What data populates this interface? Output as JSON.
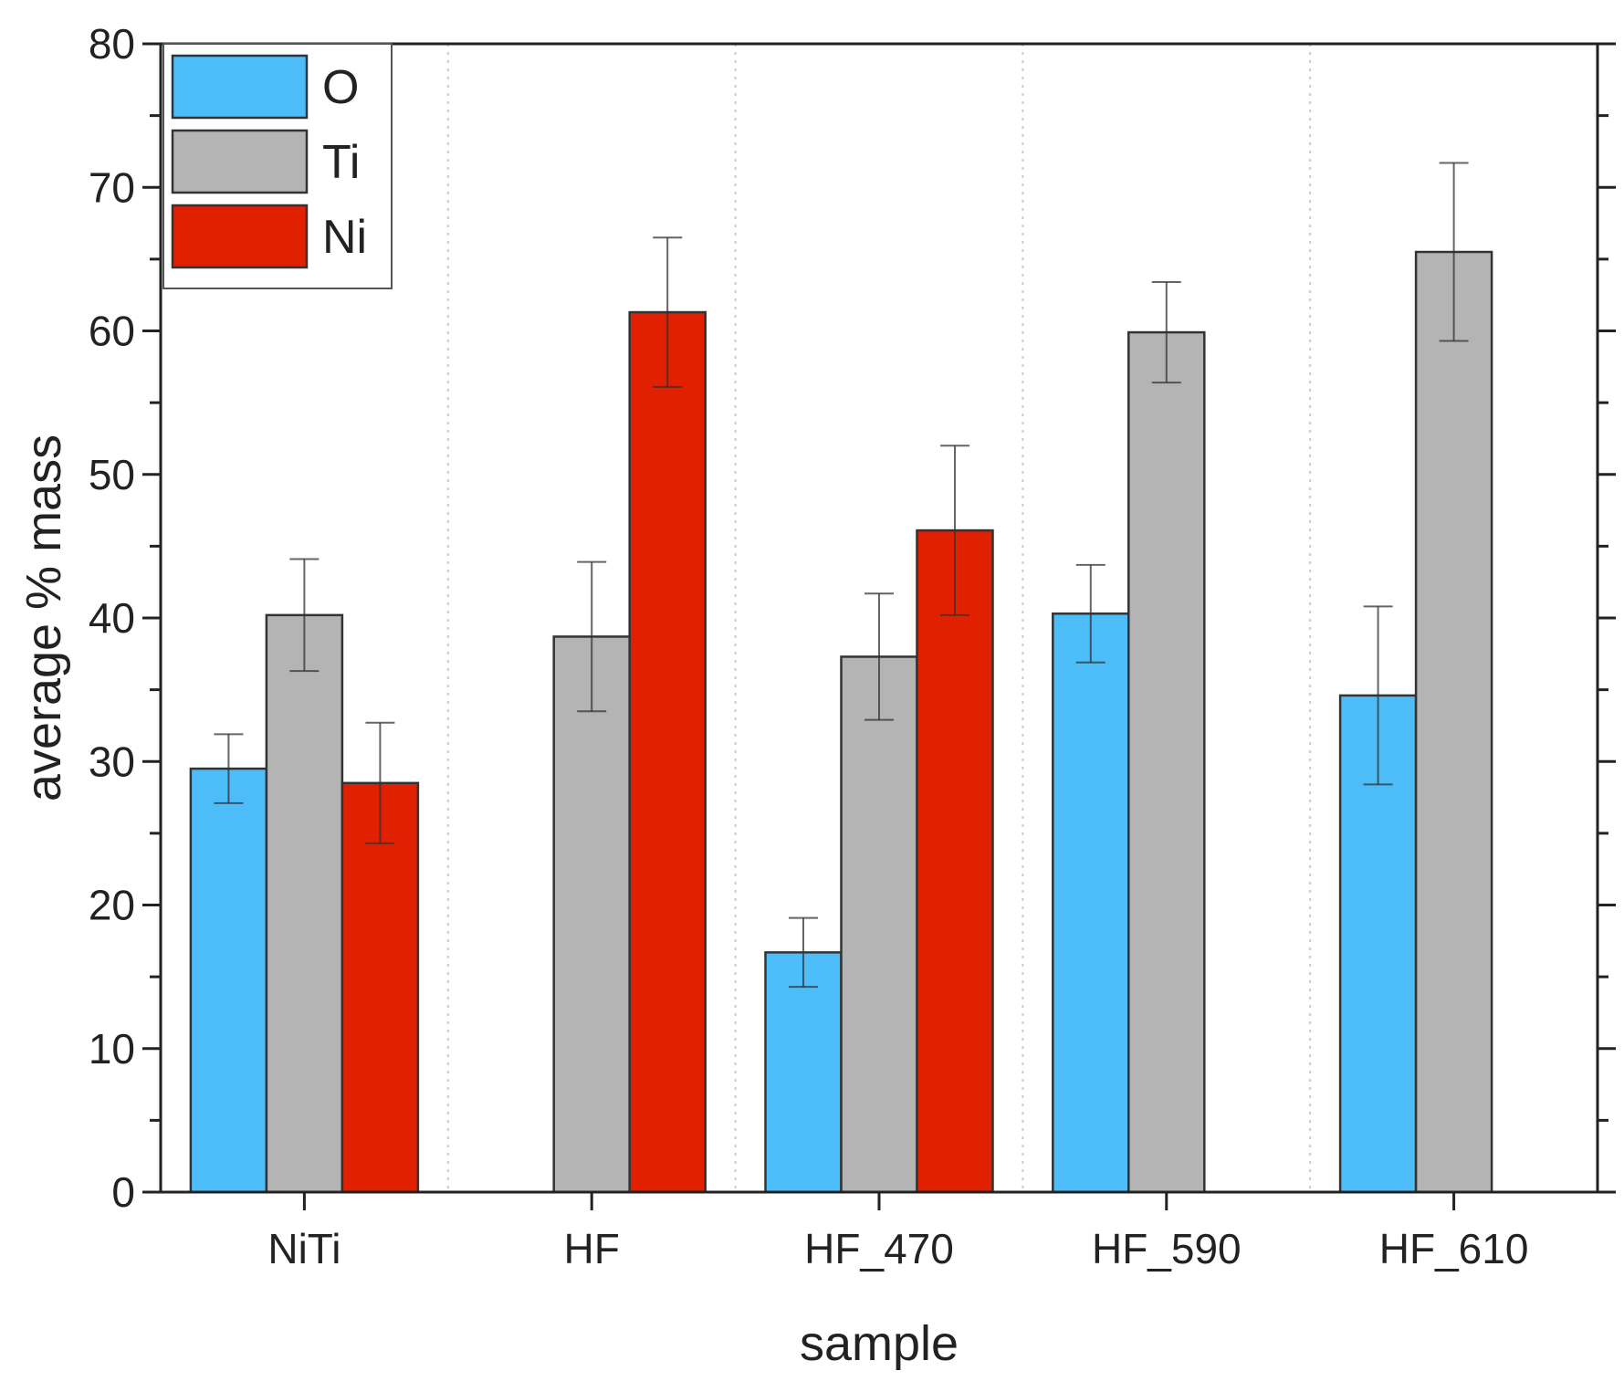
{
  "chart_data": {
    "type": "bar",
    "title": "",
    "xlabel": "sample",
    "ylabel": "average % mass",
    "ylim": [
      0,
      80
    ],
    "yticks": [
      0,
      10,
      20,
      30,
      40,
      50,
      60,
      70,
      80
    ],
    "grid": "vertical dotted separators between categories",
    "legend_position": "top-left",
    "categories": [
      "NiTi",
      "HF",
      "HF_470",
      "HF_590",
      "HF_610"
    ],
    "series": [
      {
        "name": "O",
        "color": "#4dbdfa",
        "values": [
          29.5,
          null,
          16.7,
          40.3,
          34.6
        ],
        "errors": [
          2.4,
          null,
          2.4,
          3.4,
          6.2
        ]
      },
      {
        "name": "Ti",
        "color": "#b4b4b4",
        "values": [
          40.2,
          38.7,
          37.3,
          59.9,
          65.5
        ],
        "errors": [
          3.9,
          5.2,
          4.4,
          3.5,
          6.2
        ]
      },
      {
        "name": "Ni",
        "color": "#e02000",
        "values": [
          28.5,
          61.3,
          46.1,
          null,
          null
        ],
        "errors": [
          4.2,
          5.2,
          5.9,
          null,
          null
        ]
      }
    ]
  }
}
